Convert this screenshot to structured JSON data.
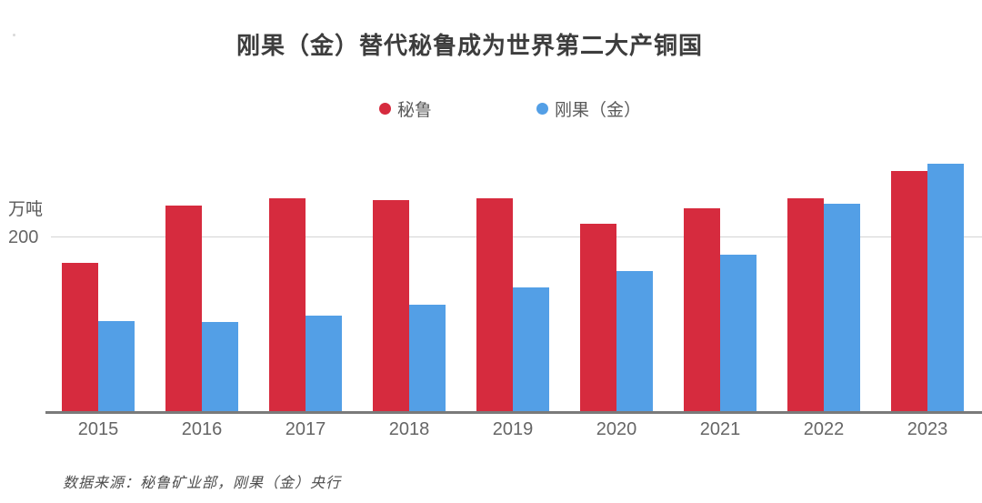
{
  "title": "刚果（金）替代秘鲁成为世界第二大产铜国",
  "y_axis": {
    "unit_label": "万吨",
    "tick_label": "200"
  },
  "source_note": "数据来源：秘鲁矿业部，刚果（金）央行",
  "colors": {
    "peru": "#d62b3e",
    "congo": "#539fe6",
    "gridline": "#d4d4d4",
    "baseline": "#7a7a7a",
    "title_text": "#3d3d3d",
    "axis_text": "#666666"
  },
  "chart_data": {
    "type": "bar",
    "title": "刚果（金）替代秘鲁成为世界第二大产铜国",
    "categories": [
      "2015",
      "2016",
      "2017",
      "2018",
      "2019",
      "2020",
      "2021",
      "2022",
      "2023"
    ],
    "series": [
      {
        "name": "秘鲁",
        "color": "#d62b3e",
        "values": [
          169,
          235,
          243,
          241,
          243,
          214,
          232,
          243,
          274
        ]
      },
      {
        "name": "刚果（金）",
        "color": "#539fe6",
        "values": [
          103,
          102,
          109,
          122,
          141,
          160,
          179,
          237,
          283
        ]
      }
    ],
    "ylabel": "万吨",
    "yticks": [
      200
    ],
    "ylim": [
      0,
      300
    ],
    "grid": "single horizontal gridline at y=200",
    "legend_position": "top-center",
    "unit": "万吨 (10k tonnes)"
  }
}
